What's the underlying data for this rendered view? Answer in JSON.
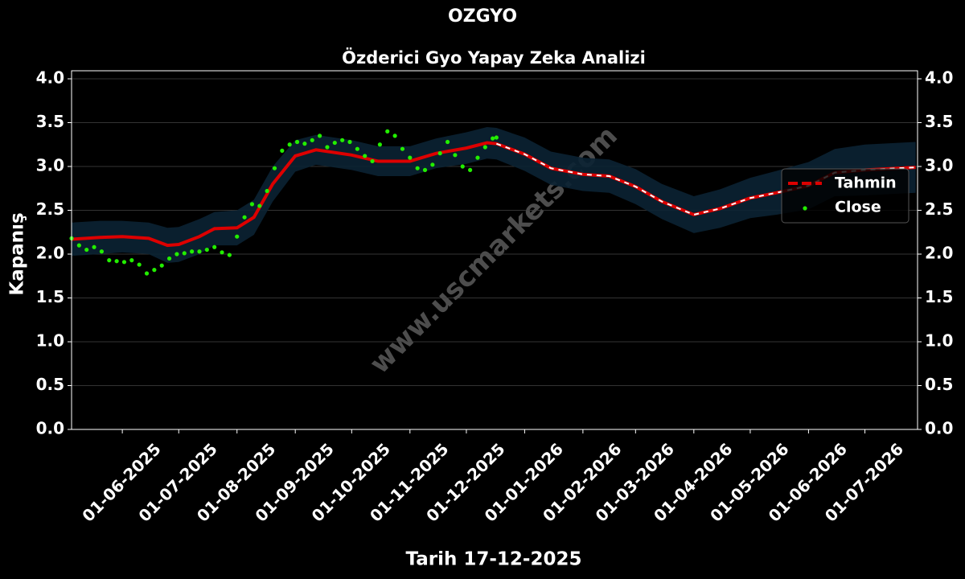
{
  "chart_data": {
    "type": "line",
    "title": "OZGYO",
    "subtitle": "Özderici Gyo Yapay Zeka Analizi",
    "x_label": "Tarih 17-12-2025",
    "y_label": "Kapanış",
    "watermark": "www.uscmarkets.com",
    "xlim": [
      "2025-05-05",
      "2026-07-29"
    ],
    "xticks": [
      {
        "value": "2025-06-01",
        "label": "01-06-2025"
      },
      {
        "value": "2025-07-01",
        "label": "01-07-2025"
      },
      {
        "value": "2025-08-01",
        "label": "01-08-2025"
      },
      {
        "value": "2025-09-01",
        "label": "01-09-2025"
      },
      {
        "value": "2025-10-01",
        "label": "01-10-2025"
      },
      {
        "value": "2025-11-01",
        "label": "01-11-2025"
      },
      {
        "value": "2025-12-01",
        "label": "01-12-2025"
      },
      {
        "value": "2026-01-01",
        "label": "01-01-2026"
      },
      {
        "value": "2026-02-01",
        "label": "01-02-2026"
      },
      {
        "value": "2026-03-01",
        "label": "01-03-2026"
      },
      {
        "value": "2026-04-01",
        "label": "01-04-2026"
      },
      {
        "value": "2026-05-01",
        "label": "01-05-2026"
      },
      {
        "value": "2026-06-01",
        "label": "01-06-2026"
      },
      {
        "value": "2026-07-01",
        "label": "01-07-2026"
      }
    ],
    "ylim": [
      0,
      4.0
    ],
    "yticks": [
      {
        "value": 0,
        "label": "0.0"
      },
      {
        "value": 0.5,
        "label": "0.5"
      },
      {
        "value": 1,
        "label": "1.0"
      },
      {
        "value": 1.5,
        "label": "1.5"
      },
      {
        "value": 2,
        "label": "2.0"
      },
      {
        "value": 2.5,
        "label": "2.5"
      },
      {
        "value": 3,
        "label": "3.0"
      },
      {
        "value": 3.5,
        "label": "3.5"
      },
      {
        "value": 4,
        "label": "4.0"
      }
    ],
    "grid": true,
    "legend": "right",
    "series": [
      {
        "name": "Tahmin",
        "color": "#dd0000",
        "x": [
          "2025-05-05",
          "2025-05-20",
          "2025-06-01",
          "2025-06-15",
          "2025-06-25",
          "2025-07-01",
          "2025-07-12",
          "2025-07-20",
          "2025-08-01",
          "2025-08-10",
          "2025-08-20",
          "2025-09-01",
          "2025-09-12",
          "2025-10-01",
          "2025-10-15",
          "2025-11-01",
          "2025-11-15",
          "2025-12-01",
          "2025-12-12",
          "2025-12-17",
          "2026-01-01",
          "2026-01-15",
          "2026-02-01",
          "2026-02-15",
          "2026-03-01",
          "2026-03-15",
          "2026-04-01",
          "2026-04-15",
          "2026-05-01",
          "2026-05-15",
          "2026-06-01",
          "2026-06-15",
          "2026-07-01",
          "2026-07-28"
        ],
        "values": [
          2.17,
          2.19,
          2.2,
          2.18,
          2.1,
          2.11,
          2.2,
          2.29,
          2.3,
          2.42,
          2.8,
          3.12,
          3.19,
          3.13,
          3.06,
          3.06,
          3.15,
          3.21,
          3.27,
          3.26,
          3.14,
          2.98,
          2.91,
          2.89,
          2.77,
          2.6,
          2.45,
          2.52,
          2.64,
          2.7,
          2.78,
          2.93,
          2.96,
          2.99
        ],
        "band_color": "#0b2233",
        "upper": [
          2.36,
          2.38,
          2.38,
          2.36,
          2.3,
          2.31,
          2.4,
          2.48,
          2.5,
          2.62,
          3.0,
          3.3,
          3.36,
          3.3,
          3.23,
          3.23,
          3.32,
          3.39,
          3.45,
          3.44,
          3.33,
          3.17,
          3.1,
          3.08,
          2.97,
          2.8,
          2.66,
          2.74,
          2.87,
          2.95,
          3.05,
          3.2,
          3.25,
          3.28
        ],
        "lower": [
          1.98,
          2.0,
          2.02,
          2.0,
          1.9,
          1.91,
          2.0,
          2.1,
          2.1,
          2.22,
          2.6,
          2.94,
          3.02,
          2.96,
          2.89,
          2.89,
          2.98,
          3.03,
          3.09,
          3.08,
          2.95,
          2.79,
          2.72,
          2.7,
          2.57,
          2.4,
          2.24,
          2.3,
          2.41,
          2.45,
          2.51,
          2.66,
          2.67,
          2.7
        ]
      },
      {
        "name": "Close",
        "color": "#22ee00",
        "x": [
          "2025-05-05",
          "2025-05-09",
          "2025-05-13",
          "2025-05-17",
          "2025-05-21",
          "2025-05-25",
          "2025-05-29",
          "2025-06-02",
          "2025-06-06",
          "2025-06-10",
          "2025-06-14",
          "2025-06-18",
          "2025-06-22",
          "2025-06-26",
          "2025-06-30",
          "2025-07-04",
          "2025-07-08",
          "2025-07-12",
          "2025-07-16",
          "2025-07-20",
          "2025-07-24",
          "2025-07-28",
          "2025-08-01",
          "2025-08-05",
          "2025-08-09",
          "2025-08-13",
          "2025-08-17",
          "2025-08-21",
          "2025-08-25",
          "2025-08-29",
          "2025-09-02",
          "2025-09-06",
          "2025-09-10",
          "2025-09-14",
          "2025-09-18",
          "2025-09-22",
          "2025-09-26",
          "2025-09-30",
          "2025-10-04",
          "2025-10-08",
          "2025-10-12",
          "2025-10-16",
          "2025-10-20",
          "2025-10-24",
          "2025-10-28",
          "2025-11-01",
          "2025-11-05",
          "2025-11-09",
          "2025-11-13",
          "2025-11-17",
          "2025-11-21",
          "2025-11-25",
          "2025-11-29",
          "2025-12-03",
          "2025-12-07",
          "2025-12-11",
          "2025-12-15",
          "2025-12-17"
        ],
        "values": [
          2.18,
          2.1,
          2.05,
          2.08,
          2.03,
          1.93,
          1.92,
          1.91,
          1.93,
          1.88,
          1.78,
          1.82,
          1.87,
          1.95,
          2.0,
          2.01,
          2.03,
          2.03,
          2.05,
          2.08,
          2.02,
          1.99,
          2.2,
          2.42,
          2.57,
          2.55,
          2.72,
          2.98,
          3.18,
          3.25,
          3.28,
          3.26,
          3.3,
          3.35,
          3.22,
          3.27,
          3.3,
          3.28,
          3.2,
          3.12,
          3.06,
          3.25,
          3.4,
          3.35,
          3.2,
          3.1,
          2.98,
          2.96,
          3.02,
          3.15,
          3.28,
          3.13,
          3.0,
          2.96,
          3.1,
          3.22,
          3.32,
          3.33
        ]
      }
    ]
  }
}
